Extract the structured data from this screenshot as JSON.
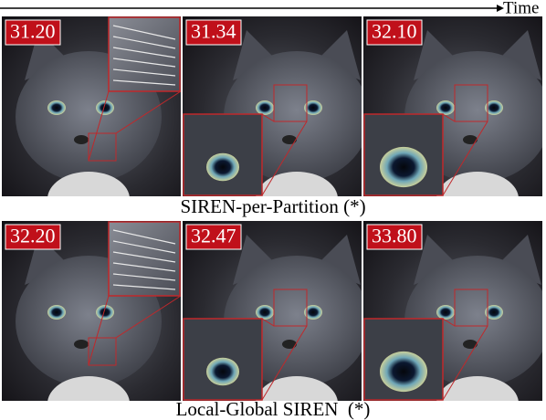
{
  "time_label": "Time",
  "rows": [
    {
      "caption": "SIREN-per-Partition (*)",
      "panels": [
        {
          "score": "31.20"
        },
        {
          "score": "31.34"
        },
        {
          "score": "32.10"
        }
      ]
    },
    {
      "caption": "Local-Global SIREN  (*)",
      "panels": [
        {
          "score": "32.20"
        },
        {
          "score": "32.47"
        },
        {
          "score": "33.80"
        }
      ]
    }
  ]
}
